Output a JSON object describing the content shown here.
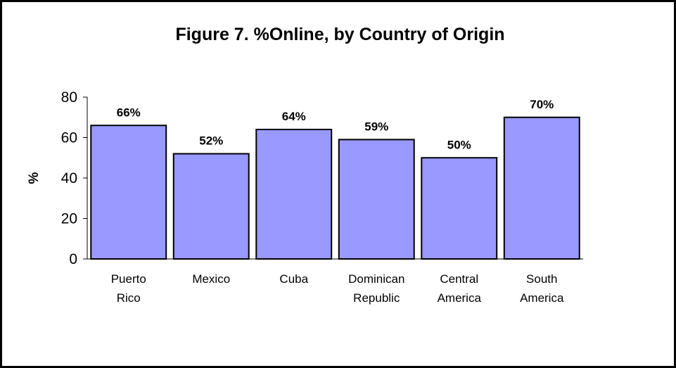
{
  "chart_data": {
    "type": "bar",
    "title": "Figure 7. %Online, by Country of Origin",
    "ylabel": "%",
    "xlabel": "",
    "ylim": [
      0,
      80
    ],
    "yticks": [
      0,
      20,
      40,
      60,
      80
    ],
    "categories": [
      [
        "Puerto",
        "Rico"
      ],
      [
        "Mexico"
      ],
      [
        "Cuba"
      ],
      [
        "Dominican",
        "Republic"
      ],
      [
        "Central",
        "America"
      ],
      [
        "South",
        "America"
      ]
    ],
    "values": [
      66,
      52,
      64,
      59,
      50,
      70
    ],
    "data_labels": [
      "66%",
      "52%",
      "64%",
      "59%",
      "50%",
      "70%"
    ],
    "bar_color": "#9999ff",
    "grid": false,
    "legend": "none"
  }
}
